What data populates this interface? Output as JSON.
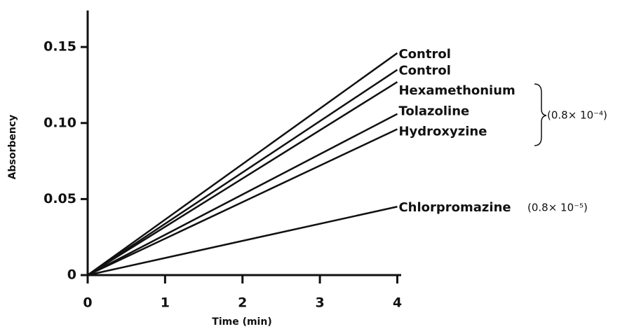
{
  "chart_data": {
    "type": "line",
    "x_label": "Time (min)",
    "y_label": "Absorbency",
    "x": [
      0,
      4
    ],
    "series": [
      {
        "name": "Control",
        "color": "#111111",
        "values": [
          0,
          0.146
        ]
      },
      {
        "name": "Control",
        "color": "#111111",
        "values": [
          0,
          0.135
        ]
      },
      {
        "name": "Hexamethonium",
        "color": "#111111",
        "values": [
          0,
          0.127
        ]
      },
      {
        "name": "Tolazoline",
        "color": "#111111",
        "values": [
          0,
          0.106
        ]
      },
      {
        "name": "Hydroxyzine",
        "color": "#111111",
        "values": [
          0,
          0.096
        ]
      },
      {
        "name": "Chlorpromazine",
        "color": "#111111",
        "values": [
          0,
          0.045
        ]
      }
    ],
    "annotations": [
      "(0.8× 10⁻⁴)",
      "(0.8× 10⁻⁵)"
    ],
    "xlim": [
      0,
      4.05
    ],
    "xticks": [
      0,
      1,
      2,
      3,
      4
    ],
    "ylim": [
      0,
      0.174
    ],
    "yticks": [
      0,
      0.05,
      {
        "value": 0.1,
        "label": "0.10"
      },
      0.15
    ],
    "grid": false
  }
}
